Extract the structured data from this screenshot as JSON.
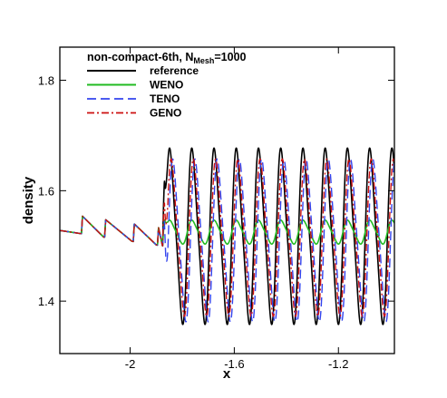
{
  "chart_data": {
    "type": "line",
    "title": "",
    "xlabel": "x",
    "ylabel": "density",
    "xlim": [
      -2.27,
      -0.985
    ],
    "ylim": [
      1.305,
      1.86
    ],
    "x_ticks": [
      -2,
      -1.6,
      -1.2
    ],
    "x_tick_labels": [
      "-2",
      "-1.6",
      "-1.2"
    ],
    "y_ticks": [
      1.4,
      1.6,
      1.8
    ],
    "y_tick_labels": [
      "1.4",
      "1.6",
      "1.8"
    ],
    "grid": false,
    "legend": {
      "placement": "top-left",
      "title_main": "non-compact-6th, N",
      "title_sub": "Mesh",
      "title_tail": "=1000"
    },
    "shock_x": -1.875,
    "pre_shock": {
      "base": [
        [
          -2.27,
          1.528
        ],
        [
          -1.875,
          1.5
        ]
      ],
      "steps": [
        -2.187,
        -2.098,
        -1.988,
        -1.895
      ],
      "step_height": 0.032
    },
    "series": [
      {
        "name": "reference",
        "color": "#000000",
        "dash": "",
        "width": 1.6,
        "oscillation": {
          "wavelength": 0.0854,
          "mean": 1.5175,
          "amplitude": 0.1625,
          "phase_offset": 0.0,
          "first_peak": 1.68
        }
      },
      {
        "name": "WENO",
        "color": "#22bb22",
        "dash": "",
        "width": 1.6,
        "oscillation": {
          "wavelength": 0.0854,
          "mean": 1.525,
          "amplitude": 0.022,
          "phase_offset": 0.0,
          "first_peak": 1.56
        }
      },
      {
        "name": "TENO",
        "color": "#3344ee",
        "dash": "10,5",
        "width": 1.4,
        "oscillation": {
          "wavelength": 0.0854,
          "mean": 1.51,
          "amplitude": 0.15,
          "phase_offset": 0.012,
          "first_peak": 1.6
        }
      },
      {
        "name": "GENO",
        "color": "#cc1111",
        "dash": "8,3,2,3",
        "width": 1.4,
        "oscillation": {
          "wavelength": 0.0854,
          "mean": 1.515,
          "amplitude": 0.145,
          "phase_offset": 0.006,
          "first_peak": 1.64
        }
      }
    ]
  }
}
